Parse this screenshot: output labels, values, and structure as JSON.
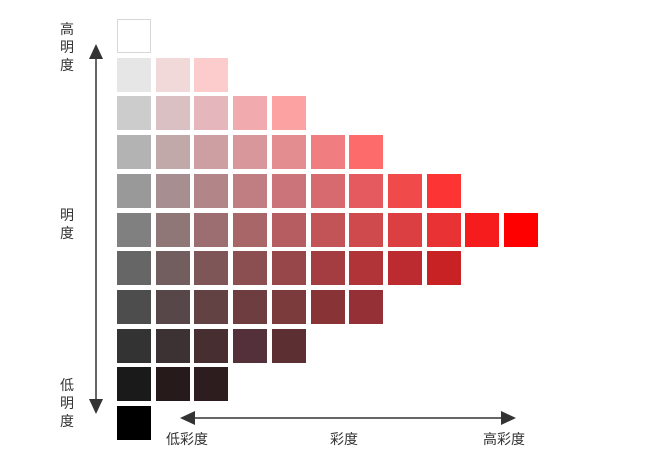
{
  "labels": {
    "top": [
      "高",
      "明",
      "度"
    ],
    "middle": [
      "明",
      "度"
    ],
    "bottom": [
      "低",
      "明",
      "度"
    ],
    "x_low": "低彩度",
    "x_mid": "彩度",
    "x_high": "高彩度"
  },
  "colors": {
    "text": "#333333",
    "arrow": "#333333",
    "hue": "#ff0000"
  },
  "grid": {
    "rows": [
      {
        "lightness": "white",
        "swatches": [
          "#ffffff"
        ]
      },
      {
        "lightness": "level-2",
        "swatches": [
          "#e6e6e6",
          "#f2d9d9",
          "#fccccc"
        ]
      },
      {
        "lightness": "level-3",
        "swatches": [
          "#cccccc",
          "#dac0c3",
          "#e6b6bd",
          "#f1abaf",
          "#fca2a3"
        ]
      },
      {
        "lightness": "level-4",
        "swatches": [
          "#b3b3b3",
          "#c1a9aa",
          "#cd9fa3",
          "#d8979a",
          "#e38d90",
          "#f07e81",
          "#fd6b6b"
        ]
      },
      {
        "lightness": "level-5",
        "swatches": [
          "#999999",
          "#a78f91",
          "#b28589",
          "#c07e83",
          "#cb7479",
          "#d76a6e",
          "#e45a5e",
          "#f04a4b",
          "#fd3434"
        ]
      },
      {
        "lightness": "level-6",
        "swatches": [
          "#808080",
          "#8f7778",
          "#9c6e72",
          "#a96669",
          "#b55d61",
          "#c25458",
          "#cf4a4d",
          "#dc3f42",
          "#e93233",
          "#f61c1e",
          "#ff0000"
        ]
      },
      {
        "lightness": "level-7",
        "swatches": [
          "#666666",
          "#735e5f",
          "#7f5658",
          "#8b4e51",
          "#974649",
          "#a33d41",
          "#b03438",
          "#bc2b2f",
          "#c92225"
        ]
      },
      {
        "lightness": "level-8",
        "swatches": [
          "#4d4d4d",
          "#574748",
          "#634244",
          "#6e3d40",
          "#7b3a3c",
          "#883437",
          "#963037"
        ]
      },
      {
        "lightness": "level-9",
        "swatches": [
          "#333333",
          "#3d3233",
          "#472e30",
          "#53303a",
          "#5c2f33"
        ]
      },
      {
        "lightness": "level-10",
        "swatches": [
          "#1a1a1a",
          "#261a1a",
          "#2e1d1e"
        ]
      },
      {
        "lightness": "black",
        "swatches": [
          "#000000"
        ]
      }
    ]
  }
}
